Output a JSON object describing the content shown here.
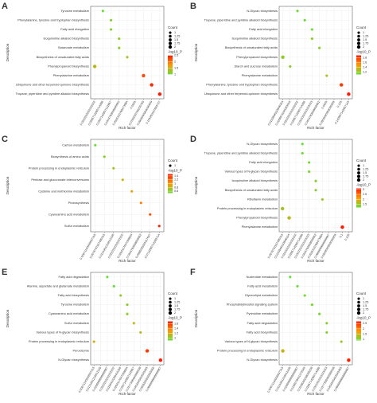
{
  "chart_data": [
    {
      "type": "scatter",
      "label": "A",
      "ylabel": "Description",
      "xlabel": "Rich factor",
      "categories": [
        "Tyrosine metabolism",
        "Phenylalanine, tyrosine and tryptophan biosynthesis",
        "Fatty acid elongation",
        "Isoquinoline alkaloid biosynthesis",
        "Butanoate metabolism",
        "Biosynthesis of unsaturated fatty acids",
        "Phenylpropanoid biosynthesis",
        "Phenylalanine metabolism",
        "Ubiquinone and other terpenoid-quinone biosynthesis",
        "Tropane, piperidine and pyridine alkaloid biosynthesis"
      ],
      "xticks": [
        0.0222222222222222,
        0.0285714285714286,
        0.0357142857142857,
        0.0434782608695652,
        0.0526315789473684,
        0.0625,
        0.0769230769230769,
        0.0909090909090909,
        0.105263157894737
      ],
      "x": [
        0.0285714285714286,
        0.0357142857142857,
        0.0357142857142857,
        0.0434782608695652,
        0.0434782608695652,
        0.0526315789473684,
        0.0222222222222222,
        0.0769230769230769,
        0.0909090909090909,
        0.105263157894737
      ],
      "count": [
        1,
        1,
        1,
        1,
        1,
        1,
        2,
        2,
        2,
        2
      ],
      "neglog10p": [
        1.0,
        1.1,
        1.1,
        1.2,
        1.2,
        1.3,
        1.4,
        2.2,
        2.4,
        2.5
      ],
      "count_legend": {
        "title": "Count",
        "ticks": [
          1.0,
          1.25,
          1.5,
          1.75,
          2.0
        ]
      },
      "color_legend": {
        "title": "-log10_P",
        "ticks": [
          1.0,
          1.5,
          2.0,
          2.5
        ],
        "lim": [
          1.0,
          2.5
        ]
      },
      "colors": [
        "#66dd33",
        "#ff9900",
        "#ff1a00"
      ]
    },
    {
      "type": "scatter",
      "label": "B",
      "ylabel": "Description",
      "xlabel": "Rich factor",
      "categories": [
        "N-Glycan biosynthesis",
        "Tropane, piperidine and pyridine alkaloid biosynthesis",
        "Fatty acid elongation",
        "Isoquinoline alkaloid biosynthesis",
        "Biosynthesis of unsaturated fatty acids",
        "Phenylpropanoid biosynthesis",
        "Starch and sucrose metabolism",
        "Phenylalanine metabolism",
        "Phenylalanine, tyrosine and tryptophan biosynthesis",
        "Ubiquinone and other terpenoid-quinone biosynthesis"
      ],
      "xticks": [
        0.0153846153846154,
        0.0188679245283019,
        0.0222222222222222,
        0.0285714285714286,
        0.0333333333333333,
        0.0434782608695652,
        0.0625,
        0.0909090909090909,
        0.125,
        0.142857142857143
      ],
      "x": [
        0.0222222222222222,
        0.0285714285714286,
        0.0333333333333333,
        0.0333333333333333,
        0.0434782608695652,
        0.0153846153846154,
        0.0188679245283019,
        0.0625,
        0.125,
        0.142857142857143
      ],
      "count": [
        1,
        1,
        1,
        1,
        1,
        2,
        1,
        1,
        2,
        2
      ],
      "neglog10p": [
        1.1,
        1.1,
        1.1,
        1.2,
        1.2,
        1.2,
        1.2,
        1.3,
        1.8,
        1.9
      ],
      "count_legend": {
        "title": "Count",
        "ticks": [
          1.0,
          1.25,
          1.5,
          1.75,
          2.0
        ]
      },
      "color_legend": {
        "title": "-log10_P",
        "ticks": [
          1.2,
          1.4,
          1.6,
          1.8
        ],
        "lim": [
          1.1,
          1.9
        ]
      },
      "colors": [
        "#66dd33",
        "#ff9900",
        "#ff1a00"
      ]
    },
    {
      "type": "scatter",
      "label": "C",
      "ylabel": "Description",
      "xlabel": "Rich factor",
      "categories": [
        "Carbon metabolism",
        "Biosynthesis of amino acids",
        "Protein processing in endoplasmic reticulum",
        "Pentose and glucuronate interconversions",
        "Cysteine and methionine metabolism",
        "Photosynthesis",
        "Cyanoamino acid metabolism",
        "Sulfur metabolism"
      ],
      "xticks": [
        0.00671140939597315,
        0.0078740157480315,
        0.0121951219512195,
        0.0222222222222222,
        0.0294117647058824,
        0.0434782608695652,
        0.0588235294117647,
        0.0714285714285714
      ],
      "x": [
        0.00671140939597315,
        0.0078740157480315,
        0.0121951219512195,
        0.0222222222222222,
        0.0294117647058824,
        0.0434782608695652,
        0.0588235294117647,
        0.0714285714285714
      ],
      "count": [
        1,
        1,
        1,
        1,
        1,
        1,
        1,
        1
      ],
      "neglog10p": [
        0.5,
        0.6,
        0.7,
        0.8,
        0.9,
        1.1,
        1.3,
        1.5
      ],
      "count_legend": {
        "title": "Count",
        "ticks": [
          1
        ]
      },
      "color_legend": {
        "title": "-log10_P",
        "ticks": [
          0.6,
          0.8,
          1.0,
          1.2,
          1.4
        ],
        "lim": [
          0.5,
          1.5
        ]
      },
      "colors": [
        "#66dd33",
        "#ff9900",
        "#ff1a00"
      ]
    },
    {
      "type": "scatter",
      "label": "D",
      "ylabel": "Description",
      "xlabel": "Rich factor",
      "categories": [
        "N-Glycan biosynthesis",
        "Tropane, piperidine and pyridine alkaloid biosynthesis",
        "Fatty acid elongation",
        "Various types of N-glycan biosynthesis",
        "Isoquinoline alkaloid biosynthesis",
        "Biosynthesis of unsaturated fatty acids",
        "Riboflavin metabolism",
        "Protein processing in endoplasmic reticulum",
        "Phenylpropanoid biosynthesis",
        "Phenylalanine metabolism"
      ],
      "xticks": [
        0.0078740157480315,
        0.0153846153846154,
        0.0222222222222222,
        0.0285714285714286,
        0.0333333333333333,
        0.0434782608695652,
        0.0526315789473684,
        0.0666666666666667,
        0.0909090909090909,
        0.1,
        0.125
      ],
      "x": [
        0.0285714285714286,
        0.0285714285714286,
        0.0333333333333333,
        0.0333333333333333,
        0.0434782608695652,
        0.0434782608695652,
        0.0526315789473684,
        0.0078740157480315,
        0.0153846153846154,
        0.1
      ],
      "count": [
        1,
        1,
        1,
        1,
        1,
        1,
        1,
        2,
        2,
        2
      ],
      "neglog10p": [
        1.2,
        1.2,
        1.3,
        1.3,
        1.4,
        1.4,
        1.5,
        1.6,
        1.7,
        3.1
      ],
      "count_legend": {
        "title": "Count",
        "ticks": [
          1.0,
          1.25,
          1.5,
          1.75,
          2.0
        ]
      },
      "color_legend": {
        "title": "-log10_P",
        "ticks": [
          1.5,
          2.0,
          2.5,
          3.0
        ],
        "lim": [
          1.2,
          3.1
        ]
      },
      "colors": [
        "#66dd33",
        "#ff9900",
        "#ff1a00"
      ]
    },
    {
      "type": "scatter",
      "label": "E",
      "ylabel": "Description",
      "xlabel": "Rich factor",
      "categories": [
        "Fatty acid degradation",
        "Alanine, aspartate and glutamate metabolism",
        "Fatty acid biosynthesis",
        "Tyrosine metabolism",
        "Cyanoamino acid metabolism",
        "Sulfur metabolism",
        "Various types of N-glycan biosynthesis",
        "Protein processing in endoplasmic reticulum",
        "Peroxisome",
        "N-Glycan biosynthesis"
      ],
      "xticks": [
        0.00671140939597315,
        0.0121951219512195,
        0.0166666666666667,
        0.0222222222222222,
        0.0256410256410256,
        0.0294117647058824,
        0.0357142857142857,
        0.0377358490566038,
        0.0454545454545455,
        0.0555555555555556,
        0.0666666666666667
      ],
      "x": [
        0.0166666666666667,
        0.0222222222222222,
        0.0256410256410256,
        0.0294117647058824,
        0.0294117647058824,
        0.0357142857142857,
        0.0377358490566038,
        0.00671140939597315,
        0.0454545454545455,
        0.0666666666666667
      ],
      "count": [
        1,
        1,
        1,
        1,
        1,
        1,
        1,
        1,
        2,
        2
      ],
      "neglog10p": [
        0.9,
        0.9,
        1.0,
        1.0,
        1.0,
        1.1,
        1.1,
        1.2,
        1.6,
        1.7
      ],
      "count_legend": {
        "title": "Count",
        "ticks": [
          1.0,
          1.25,
          1.5,
          1.75,
          2.0
        ]
      },
      "color_legend": {
        "title": "-log10_P",
        "ticks": [
          1.0,
          1.2,
          1.4,
          1.6
        ],
        "lim": [
          0.9,
          1.7
        ]
      },
      "colors": [
        "#66dd33",
        "#ff9900",
        "#ff1a00"
      ]
    },
    {
      "type": "scatter",
      "label": "F",
      "ylabel": "Description",
      "xlabel": "Rich factor",
      "categories": [
        "Nucleotide metabolism",
        "Fatty acid metabolism",
        "Glycerolipid metabolism",
        "Phosphatidylinositol signaling system",
        "Pyrimidine metabolism",
        "Fatty acid degradation",
        "Fatty acid biosynthesis",
        "Various types of N-glycan biosynthesis",
        "Protein processing in endoplasmic reticulum",
        "N-Glycan biosynthesis"
      ],
      "xticks": [
        0.00671140939597315,
        0.0121951219512195,
        0.0166666666666667,
        0.0196078431372549,
        0.0238095238095238,
        0.0285714285714286,
        0.0333333333333333,
        0.0377358490566038,
        0.0454545454545455,
        0.0666666666666667
      ],
      "x": [
        0.0121951219512195,
        0.0166666666666667,
        0.0196078431372549,
        0.0238095238095238,
        0.0285714285714286,
        0.0333333333333333,
        0.0333333333333333,
        0.0454545454545455,
        0.00671140939597315,
        0.0666666666666667
      ],
      "count": [
        1,
        1,
        1,
        1,
        1,
        1,
        1,
        1,
        2,
        2
      ],
      "neglog10p": [
        0.9,
        0.9,
        1.0,
        1.0,
        1.0,
        1.1,
        1.1,
        1.2,
        1.5,
        2.7
      ],
      "count_legend": {
        "title": "Count",
        "ticks": [
          1.0,
          1.25,
          1.5,
          1.75,
          2.0
        ]
      },
      "color_legend": {
        "title": "-log10_P",
        "ticks": [
          1.0,
          1.5,
          2.0,
          2.5
        ],
        "lim": [
          0.9,
          2.7
        ]
      },
      "colors": [
        "#66dd33",
        "#ff9900",
        "#ff1a00"
      ]
    }
  ]
}
